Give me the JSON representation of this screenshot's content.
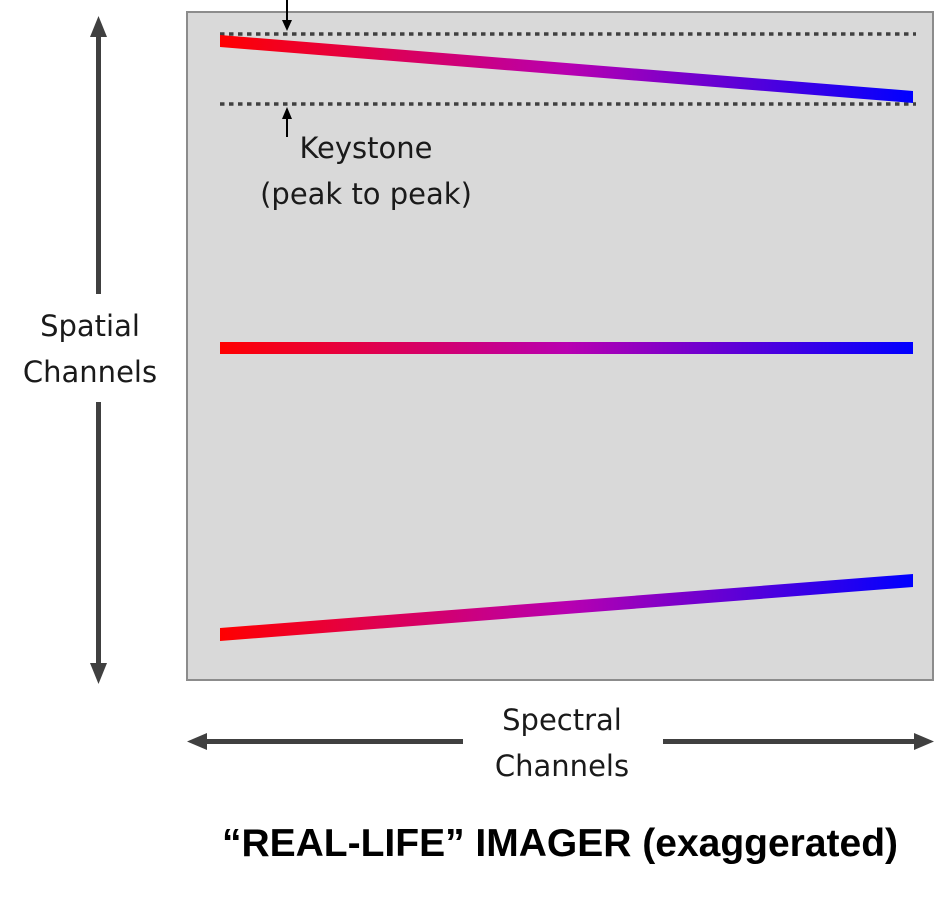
{
  "labels": {
    "spatial_line1": "Spatial",
    "spatial_line2": "Channels",
    "spectral_line1": "Spectral",
    "spectral_line2": "Channels",
    "keystone_line1": "Keystone",
    "keystone_line2": "(peak to peak)"
  },
  "caption": "“REAL-LIFE” IMAGER (exaggerated)",
  "colors": {
    "panel_fill": "#d9d9d9",
    "panel_border": "#8c8c8c",
    "axis_arrow": "#404040",
    "gradient_start": "#ff0000",
    "gradient_end": "#0000ff"
  },
  "spectral_lines": [
    {
      "name": "top-line",
      "tilt": "descending"
    },
    {
      "name": "middle-line",
      "tilt": "flat"
    },
    {
      "name": "bottom-line",
      "tilt": "ascending"
    }
  ]
}
